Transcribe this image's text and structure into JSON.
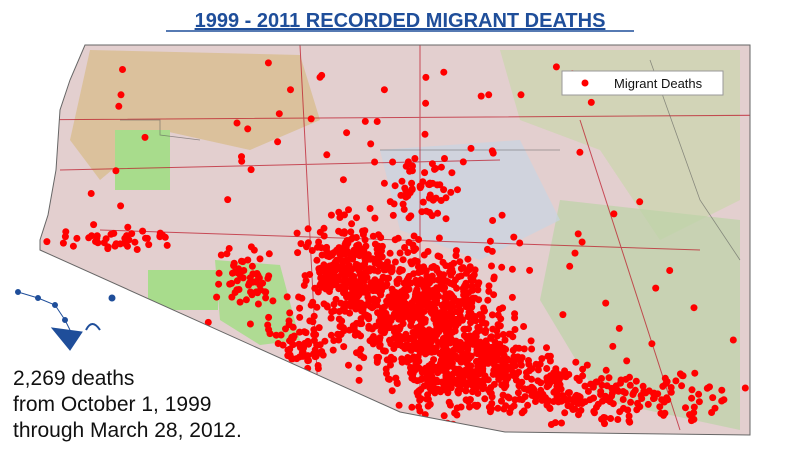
{
  "map": {
    "title": "1999 - 2011 RECORDED MIGRANT DEATHS",
    "legend": {
      "label": "Migrant Deaths"
    },
    "caption": [
      "2,269 deaths",
      "from October 1, 1999",
      "through March 28, 2012."
    ]
  }
}
